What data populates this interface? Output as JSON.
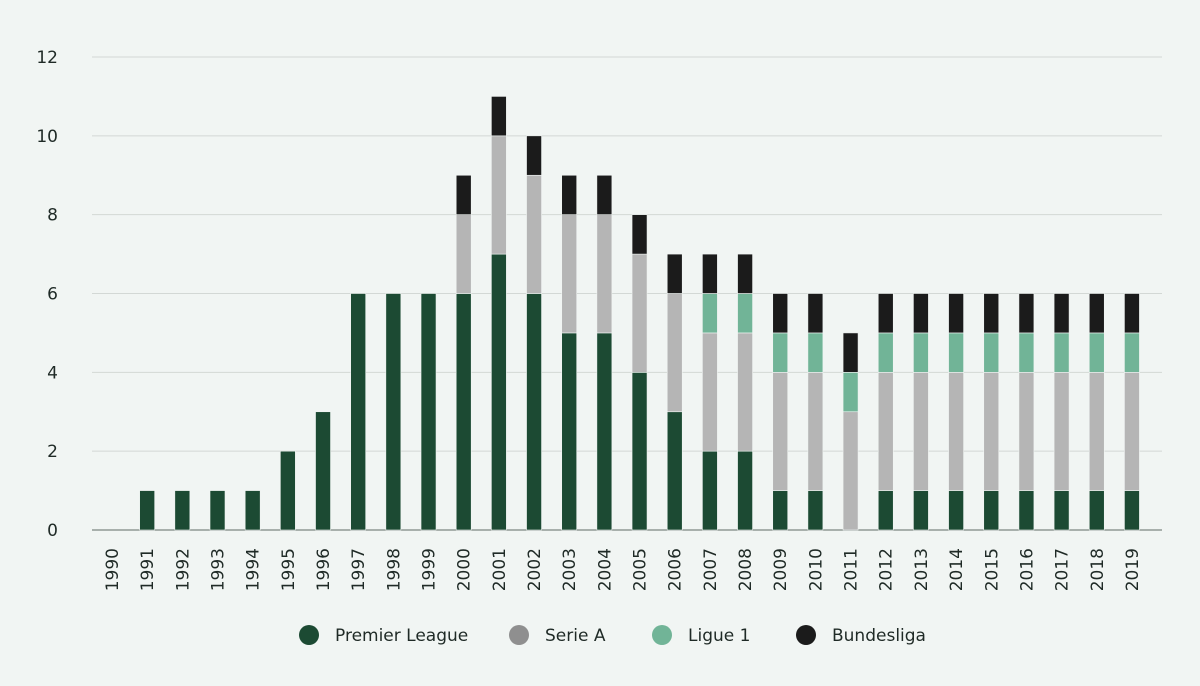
{
  "chart_data": {
    "type": "bar",
    "stacked": true,
    "title": "",
    "xlabel": "",
    "ylabel": "",
    "ylim": [
      0,
      12
    ],
    "yticks": [
      0,
      2,
      4,
      6,
      8,
      10,
      12
    ],
    "grid": true,
    "legend_position": "bottom",
    "categories": [
      "1990",
      "1991",
      "1992",
      "1993",
      "1994",
      "1995",
      "1996",
      "1997",
      "1998",
      "1999",
      "2000",
      "2001",
      "2002",
      "2003",
      "2004",
      "2005",
      "2006",
      "2007",
      "2008",
      "2009",
      "2010",
      "2011",
      "2012",
      "2013",
      "2014",
      "2015",
      "2016",
      "2017",
      "2018",
      "2019"
    ],
    "series": [
      {
        "name": "Premier League",
        "color": "#1c4a33",
        "values": [
          0,
          1,
          1,
          1,
          1,
          2,
          3,
          6,
          6,
          6,
          6,
          7,
          6,
          5,
          5,
          4,
          3,
          2,
          2,
          1,
          1,
          0,
          1,
          1,
          1,
          1,
          1,
          1,
          1,
          1
        ]
      },
      {
        "name": "Serie A",
        "color": "#b5b5b5",
        "values": [
          0,
          0,
          0,
          0,
          0,
          0,
          0,
          0,
          0,
          0,
          2,
          3,
          3,
          3,
          3,
          3,
          3,
          3,
          3,
          3,
          3,
          3,
          3,
          3,
          3,
          3,
          3,
          3,
          3,
          3
        ]
      },
      {
        "name": "Ligue 1",
        "color": "#71b497",
        "values": [
          0,
          0,
          0,
          0,
          0,
          0,
          0,
          0,
          0,
          0,
          0,
          0,
          0,
          0,
          0,
          0,
          0,
          1,
          1,
          1,
          1,
          1,
          1,
          1,
          1,
          1,
          1,
          1,
          1,
          1
        ]
      },
      {
        "name": "Bundesliga",
        "color": "#1b1b1b",
        "values": [
          0,
          0,
          0,
          0,
          0,
          0,
          0,
          0,
          0,
          0,
          1,
          1,
          1,
          1,
          1,
          1,
          1,
          1,
          1,
          1,
          1,
          1,
          1,
          1,
          1,
          1,
          1,
          1,
          1,
          1
        ]
      }
    ],
    "legend_marker_colors": [
      "#1c4a33",
      "#8f8f8f",
      "#71b497",
      "#1b1b1b"
    ]
  }
}
